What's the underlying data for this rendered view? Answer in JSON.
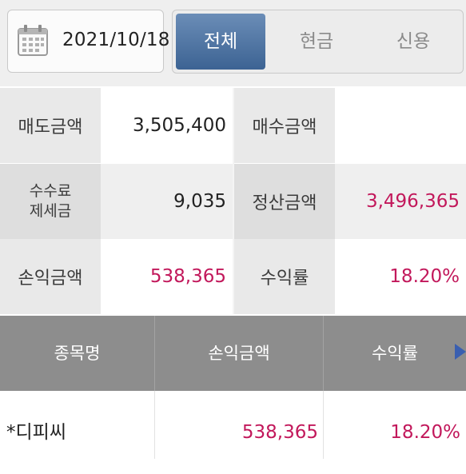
{
  "filter": {
    "date": "2021/10/18",
    "tabs": [
      {
        "label": "전체",
        "active": true
      },
      {
        "label": "현금",
        "active": false
      },
      {
        "label": "신용",
        "active": false
      }
    ]
  },
  "summary": {
    "sell_amount_label": "매도금액",
    "sell_amount_value": "3,505,400",
    "buy_amount_label": "매수금액",
    "buy_amount_value": "",
    "fee_label_line1": "수수료",
    "fee_label_line2": "제세금",
    "fee_value": "9,035",
    "settlement_label": "정산금액",
    "settlement_value": "3,496,365",
    "pnl_label": "손익금액",
    "pnl_value": "538,365",
    "return_label": "수익률",
    "return_value": "18.20%"
  },
  "table": {
    "headers": [
      "종목명",
      "손익금액",
      "수익률"
    ],
    "rows": [
      {
        "name": "*디피씨",
        "pnl": "538,365",
        "rate": "18.20%"
      }
    ]
  },
  "colors": {
    "accent": "#3c6393",
    "positive": "#c2185b",
    "header_bg": "#8d8d8d"
  }
}
